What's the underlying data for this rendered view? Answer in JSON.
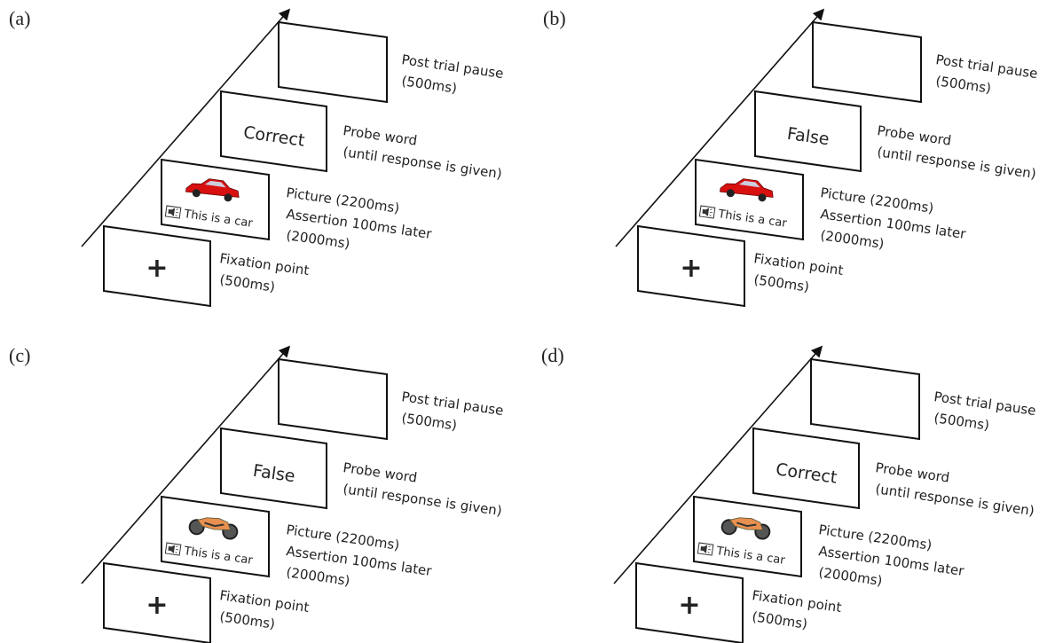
{
  "panels": [
    {
      "label": "(a)",
      "fixation": {
        "symbol": "+",
        "caption": [
          "Fixation point",
          "(500ms)"
        ]
      },
      "picture": {
        "assertion": "This is a car",
        "caption": [
          "Picture (2200ms)",
          "Assertion 100ms later",
          "(2000ms)"
        ]
      },
      "probe": {
        "word": "Correct",
        "caption": [
          "Probe word",
          "(until response is given)"
        ]
      },
      "pause": {
        "caption": [
          "Post trial pause",
          "(500ms)"
        ]
      }
    },
    {
      "label": "(b)",
      "fixation": {
        "symbol": "+",
        "caption": [
          "Fixation point",
          "(500ms)"
        ]
      },
      "picture": {
        "assertion": "This is a car",
        "caption": [
          "Picture (2200ms)",
          "Assertion 100ms later",
          "(2000ms)"
        ]
      },
      "probe": {
        "word": "False",
        "caption": [
          "Probe word",
          "(until response is given)"
        ]
      },
      "pause": {
        "caption": [
          "Post trial pause",
          "(500ms)"
        ]
      }
    },
    {
      "label": "(c)",
      "fixation": {
        "symbol": "+",
        "caption": [
          "Fixation point",
          "(500ms)"
        ]
      },
      "picture": {
        "assertion": "This is a car",
        "caption": [
          "Picture (2200ms)",
          "Assertion 100ms later",
          "(2000ms)"
        ]
      },
      "probe": {
        "word": "False",
        "caption": [
          "Probe word",
          "(until response is given)"
        ]
      },
      "pause": {
        "caption": [
          "Post trial pause",
          "(500ms)"
        ]
      }
    },
    {
      "label": "(d)",
      "fixation": {
        "symbol": "+",
        "caption": [
          "Fixation point",
          "(500ms)"
        ]
      },
      "picture": {
        "assertion": "This is a car",
        "caption": [
          "Picture (2200ms)",
          "Assertion 100ms later",
          "(2000ms)"
        ]
      },
      "probe": {
        "word": "Correct",
        "caption": [
          "Probe word",
          "(until response is given)"
        ]
      },
      "pause": {
        "caption": [
          "Post trial pause",
          "(500ms)"
        ]
      }
    }
  ]
}
